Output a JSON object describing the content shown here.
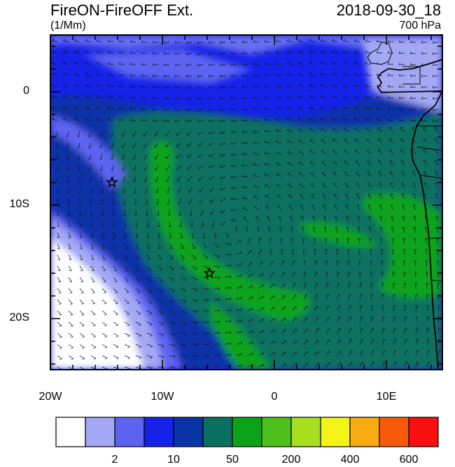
{
  "header": {
    "title": "FireON-FireOFF Ext.",
    "units": "(1/Mm)",
    "datetime": "2018-09-30_18",
    "level": "700 hPa"
  },
  "map": {
    "lon_labels": [
      "20W",
      "10W",
      "0",
      "10E"
    ],
    "lat_labels": [
      "0",
      "10S",
      "20S"
    ],
    "lon_range": [
      -20,
      15
    ],
    "lat_range": [
      -24.5,
      5
    ],
    "markers": [
      {
        "name": "star-marker-1",
        "lon": -14.5,
        "lat": -8.0
      },
      {
        "name": "star-marker-2",
        "lon": -5.8,
        "lat": -16.0
      }
    ]
  },
  "legend": {
    "colors": [
      "#ffffff",
      "#a3a8f4",
      "#5b63f0",
      "#1522e8",
      "#0b33a8",
      "#0b7060",
      "#0ca31a",
      "#4ec21c",
      "#a8e020",
      "#f4f418",
      "#f8aa10",
      "#f85a0a",
      "#f81010"
    ],
    "labels": [
      "2",
      "10",
      "50",
      "200",
      "400",
      "600"
    ]
  }
}
